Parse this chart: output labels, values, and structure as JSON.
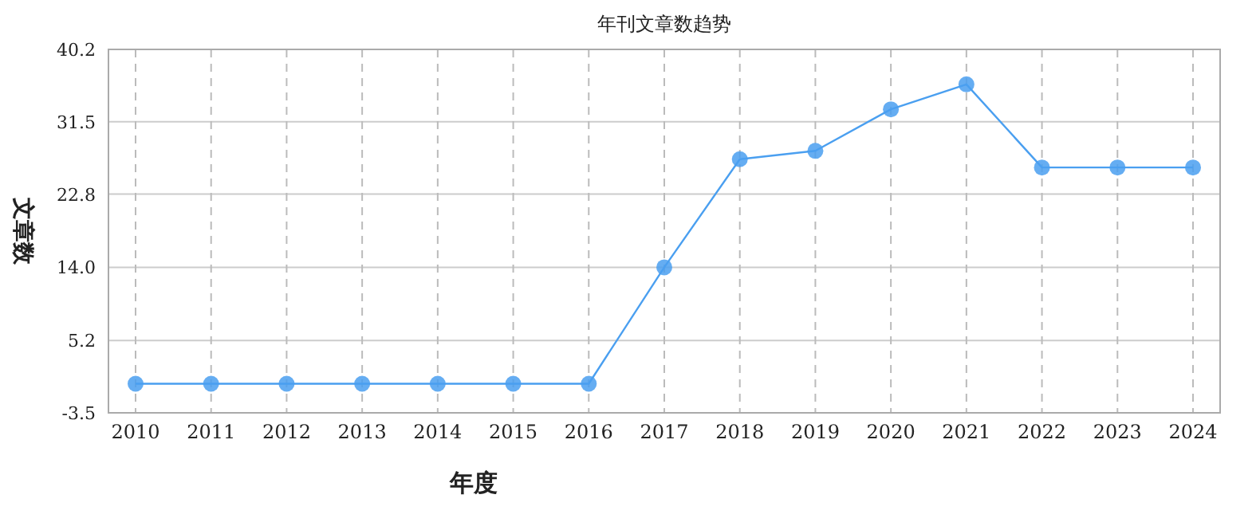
{
  "chart_data": {
    "type": "line",
    "title": "年刊文章数趋势",
    "xlabel": "年度",
    "ylabel": "文章数",
    "categories": [
      "2010",
      "2011",
      "2012",
      "2013",
      "2014",
      "2015",
      "2016",
      "2017",
      "2018",
      "2019",
      "2020",
      "2021",
      "2022",
      "2023",
      "2024"
    ],
    "series": [
      {
        "color": "#4a9ff0",
        "values": [
          0,
          0,
          0,
          0,
          0,
          0,
          0,
          14,
          27,
          28,
          33,
          36,
          26,
          26,
          26
        ]
      }
    ],
    "ylim": [
      -3.5,
      40.2
    ],
    "yticks": [
      -3.5,
      5.2,
      {
        "value": 14,
        "label": "14.0"
      },
      22.8,
      31.5,
      40.2
    ],
    "grid": true,
    "marker": "circle",
    "line_style": "solid"
  }
}
